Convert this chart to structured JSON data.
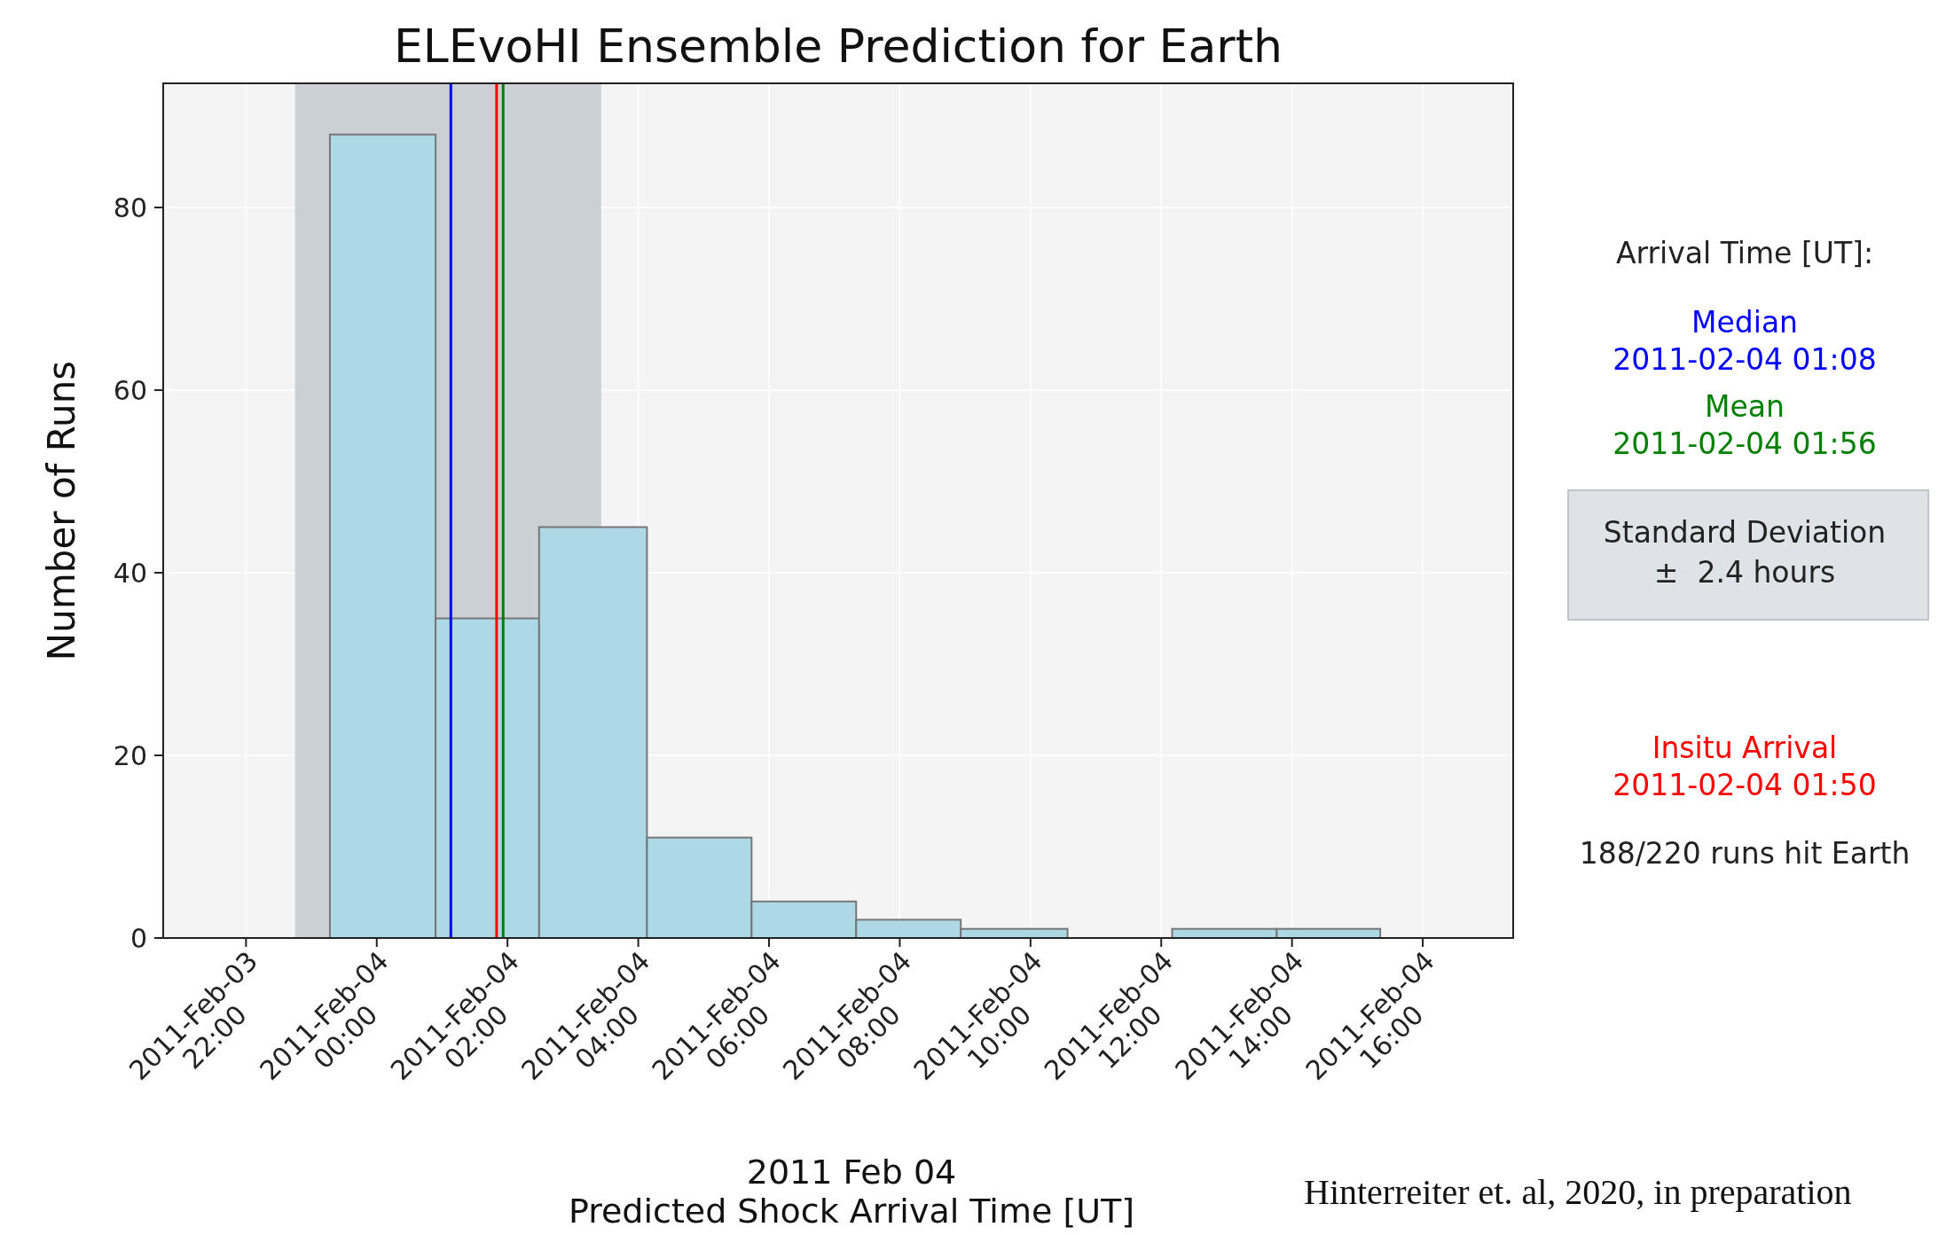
{
  "chart_data": {
    "type": "histogram",
    "title": "ELEvoHI Ensemble Prediction for Earth",
    "xlabel": "2011 Feb 04\nPredicted Shock Arrival Time [UT]",
    "ylabel": "Number of Runs",
    "bins": [
      "2011-02-03T23:17",
      "2011-02-04T00:54",
      "2011-02-04T02:29",
      "2011-02-04T04:08",
      "2011-02-04T05:44",
      "2011-02-04T07:20",
      "2011-02-04T08:56",
      "2011-02-04T10:34",
      "2011-02-04T12:10",
      "2011-02-04T13:46",
      "2011-02-04T15:21"
    ],
    "values": [
      88,
      35,
      45,
      11,
      4,
      2,
      1,
      0,
      1,
      1
    ],
    "color": "#add8e6",
    "xlim": [
      "2011-02-03T20:44",
      "2011-02-04T17:23"
    ],
    "xticks": [
      {
        "value": "2011-02-03T22:00",
        "label": "2011-Feb-03\n22:00"
      },
      {
        "value": "2011-02-04T00:00",
        "label": "2011-Feb-04\n00:00"
      },
      {
        "value": "2011-02-04T02:00",
        "label": "2011-Feb-04\n02:00"
      },
      {
        "value": "2011-02-04T04:00",
        "label": "2011-Feb-04\n04:00"
      },
      {
        "value": "2011-02-04T06:00",
        "label": "2011-Feb-04\n06:00"
      },
      {
        "value": "2011-02-04T08:00",
        "label": "2011-Feb-04\n08:00"
      },
      {
        "value": "2011-02-04T10:00",
        "label": "2011-Feb-04\n10:00"
      },
      {
        "value": "2011-02-04T12:00",
        "label": "2011-Feb-04\n12:00"
      },
      {
        "value": "2011-02-04T14:00",
        "label": "2011-Feb-04\n14:00"
      },
      {
        "value": "2011-02-04T16:00",
        "label": "2011-Feb-04\n16:00"
      }
    ],
    "ylim": [
      0,
      93.6
    ],
    "yticks": [
      0,
      20,
      40,
      60,
      80
    ],
    "grid": true,
    "bands": [
      {
        "axis": "x",
        "from": "2011-02-03T22:45",
        "to": "2011-02-04T03:26",
        "color": "#cbd0d5"
      }
    ],
    "ref_lines": [
      {
        "axis": "x",
        "value": "2011-02-04T01:08",
        "label": "Median\n2011-02-04 01:08",
        "color": "#0000ff"
      },
      {
        "axis": "x",
        "value": "2011-02-04T01:56",
        "label": "Mean\n2011-02-04 01:56",
        "color": "#008000"
      },
      {
        "axis": "x",
        "value": "2011-02-04T01:50",
        "label": "Insitu Arrival\n2011-02-04 01:50",
        "color": "#ff0000"
      }
    ],
    "annotations": [
      "Arrival Time [UT]:",
      "188/220 runs hit Earth",
      "Hinterreiter et. al, 2020, in preparation",
      "Standard Deviation\n±  2.4 hours"
    ]
  }
}
